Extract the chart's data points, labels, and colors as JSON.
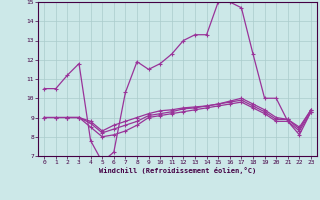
{
  "xlabel": "Windchill (Refroidissement éolien,°C)",
  "line_color": "#993399",
  "bg_color": "#cce8e8",
  "grid_color": "#aacccc",
  "xlim": [
    -0.5,
    23.5
  ],
  "ylim": [
    7,
    15
  ],
  "xticks": [
    0,
    1,
    2,
    3,
    4,
    5,
    6,
    7,
    8,
    9,
    10,
    11,
    12,
    13,
    14,
    15,
    16,
    17,
    18,
    19,
    20,
    21,
    22,
    23
  ],
  "yticks": [
    7,
    8,
    9,
    10,
    11,
    12,
    13,
    14,
    15
  ],
  "line1_x": [
    0,
    1,
    2,
    3,
    4,
    5,
    6,
    7,
    8,
    9,
    10,
    11,
    12,
    13,
    14,
    15,
    16,
    17,
    18,
    19,
    20,
    21,
    22,
    23
  ],
  "line1_y": [
    10.5,
    10.5,
    11.2,
    11.8,
    7.8,
    6.7,
    7.2,
    10.3,
    11.9,
    11.5,
    11.8,
    12.3,
    13.0,
    13.3,
    13.3,
    15.0,
    15.0,
    14.7,
    12.3,
    10.0,
    10.0,
    8.8,
    8.1,
    9.3
  ],
  "line2_x": [
    0,
    1,
    2,
    3,
    4,
    5,
    6,
    7,
    8,
    9,
    10,
    11,
    12,
    13,
    14,
    15,
    16,
    17,
    18,
    19,
    20,
    21,
    22,
    23
  ],
  "line2_y": [
    9.0,
    9.0,
    9.0,
    9.0,
    8.5,
    8.0,
    8.1,
    8.3,
    8.6,
    9.0,
    9.1,
    9.2,
    9.3,
    9.4,
    9.5,
    9.6,
    9.7,
    9.8,
    9.5,
    9.2,
    8.8,
    8.8,
    8.3,
    9.3
  ],
  "line3_x": [
    0,
    1,
    2,
    3,
    4,
    5,
    6,
    7,
    8,
    9,
    10,
    11,
    12,
    13,
    14,
    15,
    16,
    17,
    18,
    19,
    20,
    21,
    22,
    23
  ],
  "line3_y": [
    9.0,
    9.0,
    9.0,
    9.0,
    8.7,
    8.2,
    8.4,
    8.6,
    8.8,
    9.1,
    9.2,
    9.3,
    9.45,
    9.5,
    9.6,
    9.7,
    9.8,
    9.9,
    9.6,
    9.3,
    8.9,
    8.9,
    8.4,
    9.4
  ],
  "line4_x": [
    2,
    3,
    4,
    5,
    6,
    7,
    8,
    9,
    10,
    11,
    12,
    13,
    14,
    15,
    16,
    17,
    18,
    19,
    20,
    21,
    22,
    23
  ],
  "line4_y": [
    9.0,
    9.0,
    8.8,
    8.3,
    8.6,
    8.8,
    9.0,
    9.2,
    9.35,
    9.4,
    9.5,
    9.55,
    9.6,
    9.7,
    9.85,
    10.0,
    9.7,
    9.4,
    9.0,
    8.9,
    8.5,
    9.4
  ]
}
